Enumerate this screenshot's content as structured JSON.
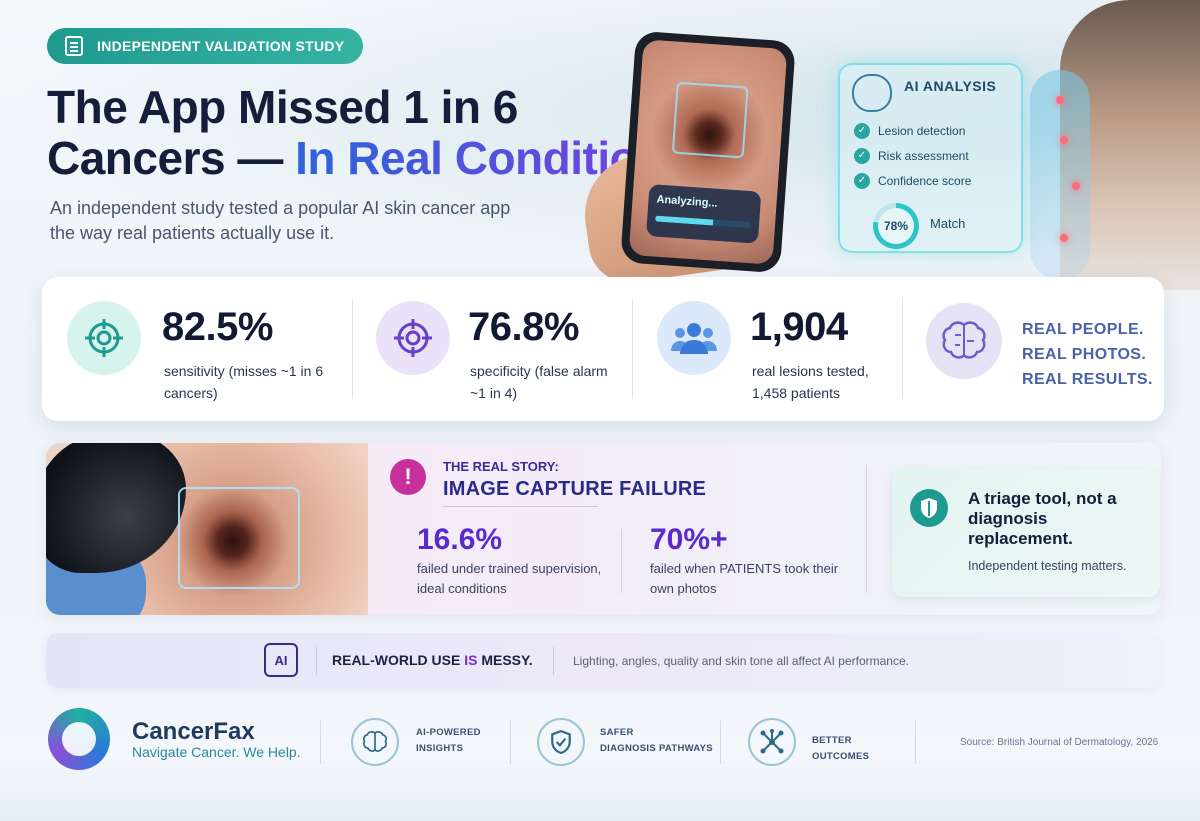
{
  "header": {
    "badge": "INDEPENDENT VALIDATION STUDY",
    "title_line1": "The App Missed 1 in 6",
    "title_line2_a": "Cancers — ",
    "title_line2_b": "In Real Conditions",
    "subtitle": "An independent study tested a popular AI skin cancer app the way real patients actually use it."
  },
  "phone": {
    "status": "Analyzing...",
    "progress": 0.6
  },
  "ai_card": {
    "title": "AI ANALYSIS",
    "items": [
      "Lesion detection",
      "Risk assessment",
      "Confidence score"
    ],
    "score": "78%",
    "score_value": 0.78,
    "score_label": "Match"
  },
  "stats": [
    {
      "value": "82.5%",
      "label": "sensitivity (misses ~1 in 6 cancers)",
      "icon": "target-icon",
      "color": "#1f9a8f"
    },
    {
      "value": "76.8%",
      "label": "specificity (false alarm ~1 in 4)",
      "icon": "crosshair-icon",
      "color": "#6a3fc8"
    },
    {
      "value": "1,904",
      "label": "real lesions tested, 1,458 patients",
      "icon": "people-icon",
      "color": "#3a7ad8"
    }
  ],
  "real": [
    "REAL PEOPLE.",
    "REAL PHOTOS.",
    "REAL RESULTS."
  ],
  "story": {
    "kicker": "THE REAL STORY:",
    "heading": "IMAGE CAPTURE FAILURE",
    "a_value": "16.6%",
    "a_label": "failed under trained supervision, ideal conditions",
    "b_value": "70%+",
    "b_label": "failed when PATIENTS took their own photos",
    "triage_title": "A triage tool, not a diagnosis replacement.",
    "triage_sub": "Independent testing matters."
  },
  "banner": {
    "chip": "AI",
    "title_a": "REAL-WORLD USE ",
    "title_b": "IS",
    "title_c": " MESSY.",
    "sub": "Lighting, angles, quality and skin tone all affect AI performance."
  },
  "footer": {
    "brand": "CancerFax",
    "tagline": "Navigate Cancer. We Help.",
    "features": [
      {
        "l1": "AI-POWERED",
        "l2": "INSIGHTS",
        "icon": "brain-icon"
      },
      {
        "l1": "SAFER",
        "l2": "DIAGNOSIS PATHWAYS",
        "icon": "shield-icon"
      },
      {
        "l1": "BETTER",
        "l2": "OUTCOMES",
        "icon": "network-icon"
      }
    ],
    "source": "Source: British Journal of Dermatology, 2026"
  }
}
